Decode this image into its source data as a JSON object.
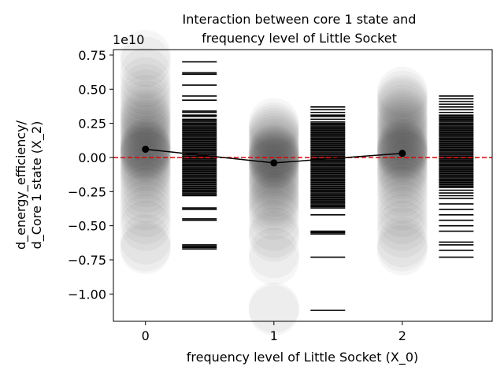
{
  "chart_data": {
    "type": "scatter",
    "title_lines": [
      "Interaction between core 1 state and",
      "frequency level of Little Socket"
    ],
    "xlabel": "frequency level of Little Socket (X_0)",
    "ylabel_lines": [
      "d_energy_efficiency/",
      "d_Core 1 state (X_2)"
    ],
    "y_offset_label": "1e10",
    "y_scale": 10000000000.0,
    "xlim": [
      -0.25,
      2.7
    ],
    "ylim": [
      -1.2,
      0.79
    ],
    "x_ticks": [
      0,
      1,
      2
    ],
    "x_tick_labels": [
      "0",
      "1",
      "2"
    ],
    "y_ticks": [
      -1.0,
      -0.75,
      -0.5,
      -0.25,
      0.0,
      0.25,
      0.5,
      0.75
    ],
    "y_tick_labels": [
      "−1.00",
      "−0.75",
      "−0.50",
      "−0.25",
      "0.00",
      "0.25",
      "0.50",
      "0.75"
    ],
    "reference_line": {
      "y": 0,
      "color": "#e00000",
      "style": "dashed"
    },
    "mean_line": {
      "x": [
        0,
        1,
        2
      ],
      "y": [
        0.06,
        -0.04,
        0.03
      ],
      "color": "#000000"
    },
    "point_clouds": [
      {
        "x": 0,
        "y": [
          0.75,
          0.7,
          0.62,
          0.55,
          0.5,
          0.46,
          0.42,
          0.38,
          0.35,
          0.32,
          0.3,
          0.28,
          0.26,
          0.24,
          0.22,
          0.2,
          0.18,
          0.16,
          0.14,
          0.12,
          0.1,
          0.09,
          0.08,
          0.07,
          0.06,
          0.05,
          0.04,
          0.03,
          0.02,
          0.01,
          0.0,
          -0.02,
          -0.04,
          -0.06,
          -0.08,
          -0.1,
          -0.12,
          -0.15,
          -0.18,
          -0.22,
          -0.26,
          -0.3,
          -0.35,
          -0.4,
          -0.45,
          -0.5,
          -0.6,
          -0.65,
          -0.67
        ]
      },
      {
        "x": 1,
        "y": [
          0.25,
          0.22,
          0.2,
          0.18,
          0.16,
          0.14,
          0.12,
          0.1,
          0.08,
          0.06,
          0.05,
          0.04,
          0.03,
          0.02,
          0.01,
          0.0,
          -0.01,
          -0.02,
          -0.03,
          -0.04,
          -0.05,
          -0.06,
          -0.08,
          -0.1,
          -0.12,
          -0.14,
          -0.16,
          -0.18,
          -0.2,
          -0.22,
          -0.25,
          -0.28,
          -0.3,
          -0.32,
          -0.35,
          -0.38,
          -0.42,
          -0.5,
          -0.55,
          -0.58,
          -0.7,
          -0.75,
          -1.1,
          -1.12
        ]
      },
      {
        "x": 2,
        "y": [
          0.48,
          0.45,
          0.42,
          0.4,
          0.38,
          0.35,
          0.32,
          0.3,
          0.28,
          0.26,
          0.24,
          0.22,
          0.2,
          0.18,
          0.16,
          0.14,
          0.12,
          0.1,
          0.09,
          0.08,
          0.07,
          0.06,
          0.05,
          0.04,
          0.03,
          0.02,
          0.01,
          0.0,
          -0.02,
          -0.04,
          -0.06,
          -0.08,
          -0.1,
          -0.12,
          -0.15,
          -0.18,
          -0.22,
          -0.25,
          -0.3,
          -0.35,
          -0.4,
          -0.45,
          -0.5,
          -0.55,
          -0.62,
          -0.65,
          -0.68
        ]
      }
    ],
    "rug_ticks": [
      {
        "x": 0.42,
        "y": [
          0.7,
          0.62,
          0.61,
          0.53,
          0.45,
          0.42,
          0.34,
          0.33,
          0.31,
          0.3,
          0.28,
          0.27,
          0.26,
          0.25,
          0.24,
          0.23,
          0.22,
          0.21,
          0.2,
          0.19,
          0.18,
          0.17,
          0.16,
          0.15,
          0.14,
          0.13,
          0.12,
          0.11,
          0.1,
          0.09,
          0.08,
          0.07,
          0.06,
          0.05,
          0.04,
          0.03,
          0.02,
          0.01,
          0.0,
          -0.01,
          -0.02,
          -0.03,
          -0.04,
          -0.05,
          -0.06,
          -0.07,
          -0.08,
          -0.09,
          -0.1,
          -0.11,
          -0.12,
          -0.13,
          -0.14,
          -0.15,
          -0.16,
          -0.17,
          -0.18,
          -0.19,
          -0.2,
          -0.21,
          -0.22,
          -0.23,
          -0.24,
          -0.25,
          -0.26,
          -0.27,
          -0.28,
          -0.37,
          -0.38,
          -0.45,
          -0.46,
          -0.64,
          -0.65,
          -0.66,
          -0.67
        ]
      },
      {
        "x": 1.42,
        "y": [
          0.37,
          0.35,
          0.33,
          0.31,
          0.3,
          0.28,
          0.26,
          0.25,
          0.24,
          0.23,
          0.22,
          0.21,
          0.2,
          0.19,
          0.18,
          0.17,
          0.16,
          0.15,
          0.14,
          0.13,
          0.12,
          0.11,
          0.1,
          0.09,
          0.08,
          0.07,
          0.06,
          0.05,
          0.04,
          0.03,
          0.02,
          0.01,
          0.0,
          -0.01,
          -0.02,
          -0.03,
          -0.04,
          -0.05,
          -0.06,
          -0.07,
          -0.08,
          -0.09,
          -0.1,
          -0.11,
          -0.12,
          -0.13,
          -0.14,
          -0.15,
          -0.16,
          -0.17,
          -0.18,
          -0.19,
          -0.2,
          -0.21,
          -0.22,
          -0.23,
          -0.24,
          -0.25,
          -0.26,
          -0.27,
          -0.28,
          -0.29,
          -0.3,
          -0.31,
          -0.32,
          -0.33,
          -0.34,
          -0.35,
          -0.36,
          -0.37,
          -0.42,
          -0.54,
          -0.55,
          -0.56,
          -0.73,
          -1.12
        ]
      },
      {
        "x": 2.42,
        "y": [
          0.45,
          0.43,
          0.41,
          0.39,
          0.37,
          0.35,
          0.33,
          0.31,
          0.3,
          0.29,
          0.28,
          0.27,
          0.26,
          0.25,
          0.24,
          0.23,
          0.22,
          0.21,
          0.2,
          0.19,
          0.18,
          0.17,
          0.16,
          0.15,
          0.14,
          0.13,
          0.12,
          0.11,
          0.1,
          0.09,
          0.08,
          0.07,
          0.06,
          0.05,
          0.04,
          0.03,
          0.02,
          0.01,
          0.0,
          -0.01,
          -0.02,
          -0.03,
          -0.04,
          -0.05,
          -0.06,
          -0.07,
          -0.08,
          -0.09,
          -0.1,
          -0.11,
          -0.12,
          -0.13,
          -0.14,
          -0.15,
          -0.16,
          -0.17,
          -0.18,
          -0.19,
          -0.2,
          -0.21,
          -0.22,
          -0.24,
          -0.26,
          -0.28,
          -0.3,
          -0.34,
          -0.38,
          -0.42,
          -0.46,
          -0.5,
          -0.54,
          -0.62,
          -0.64,
          -0.68,
          -0.73
        ]
      }
    ]
  }
}
